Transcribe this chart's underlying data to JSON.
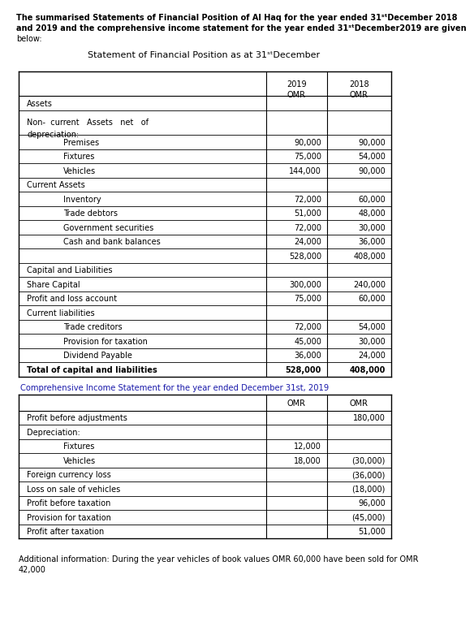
{
  "intro_line1": "The summarised Statements of Financial Position of Al Haq for the year ended 31ˢᵗDecember 2018",
  "intro_line2": "and 2019 and the comprehensive income statement for the year ended 31ˢᵗDecember2019 are given",
  "intro_line3": "below:",
  "sfp_title": "Statement of Financial Position as at 31ˢᵗDecember",
  "sfp_rows": [
    {
      "label": "Assets",
      "val2019": "",
      "val2018": "",
      "indent": 0,
      "bold": false,
      "multiline": false
    },
    {
      "label": "Non-  current   Assets   net   of\ndepreciation:",
      "val2019": "",
      "val2018": "",
      "indent": 0,
      "bold": false,
      "multiline": true
    },
    {
      "label": "Premises",
      "val2019": "90,000",
      "val2018": "90,000",
      "indent": 1,
      "bold": false,
      "multiline": false
    },
    {
      "label": "Fixtures",
      "val2019": "75,000",
      "val2018": "54,000",
      "indent": 1,
      "bold": false,
      "multiline": false
    },
    {
      "label": "Vehicles",
      "val2019": "144,000",
      "val2018": "90,000",
      "indent": 1,
      "bold": false,
      "multiline": false
    },
    {
      "label": "Current Assets",
      "val2019": "",
      "val2018": "",
      "indent": 0,
      "bold": false,
      "multiline": false
    },
    {
      "label": "Inventory",
      "val2019": "72,000",
      "val2018": "60,000",
      "indent": 1,
      "bold": false,
      "multiline": false
    },
    {
      "label": "Trade debtors",
      "val2019": "51,000",
      "val2018": "48,000",
      "indent": 1,
      "bold": false,
      "multiline": false
    },
    {
      "label": "Government securities",
      "val2019": "72,000",
      "val2018": "30,000",
      "indent": 1,
      "bold": false,
      "multiline": false
    },
    {
      "label": "Cash and bank balances",
      "val2019": "24,000",
      "val2018": "36,000",
      "indent": 1,
      "bold": false,
      "multiline": false
    },
    {
      "label": "",
      "val2019": "528,000",
      "val2018": "408,000",
      "indent": 0,
      "bold": false,
      "multiline": false
    },
    {
      "label": "Capital and Liabilities",
      "val2019": "",
      "val2018": "",
      "indent": 0,
      "bold": false,
      "multiline": false
    },
    {
      "label": "Share Capital",
      "val2019": "300,000",
      "val2018": "240,000",
      "indent": 0,
      "bold": false,
      "multiline": false
    },
    {
      "label": "Profit and loss account",
      "val2019": "75,000",
      "val2018": "60,000",
      "indent": 0,
      "bold": false,
      "multiline": false
    },
    {
      "label": "Current liabilities",
      "val2019": "",
      "val2018": "",
      "indent": 0,
      "bold": false,
      "multiline": false
    },
    {
      "label": "Trade creditors",
      "val2019": "72,000",
      "val2018": "54,000",
      "indent": 1,
      "bold": false,
      "multiline": false
    },
    {
      "label": "Provision for taxation",
      "val2019": "45,000",
      "val2018": "30,000",
      "indent": 1,
      "bold": false,
      "multiline": false
    },
    {
      "label": "Dividend Payable",
      "val2019": "36,000",
      "val2018": "24,000",
      "indent": 1,
      "bold": false,
      "multiline": false
    },
    {
      "label": "Total of capital and liabilities",
      "val2019": "528,000",
      "val2018": "408,000",
      "indent": 0,
      "bold": true,
      "multiline": false
    }
  ],
  "cis_title": "Comprehensive Income Statement for the year ended December 31st, 2019",
  "cis_title_color": "#1a1aaa",
  "cis_rows": [
    {
      "label": "Profit before adjustments",
      "col1": "",
      "col2": "180,000",
      "indent": 0
    },
    {
      "label": "Depreciation:",
      "col1": "",
      "col2": "",
      "indent": 0
    },
    {
      "label": "Fixtures",
      "col1": "12,000",
      "col2": "",
      "indent": 1
    },
    {
      "label": "Vehicles",
      "col1": "18,000",
      "col2": "(30,000)",
      "indent": 1
    },
    {
      "label": "Foreign currency loss",
      "col1": "",
      "col2": "(36,000)",
      "indent": 0
    },
    {
      "label": "Loss on sale of vehicles",
      "col1": "",
      "col2": "(18,000)",
      "indent": 0
    },
    {
      "label": "Profit before taxation",
      "col1": "",
      "col2": "96,000",
      "indent": 0
    },
    {
      "label": "Provision for taxation",
      "col1": "",
      "col2": "(45,000)",
      "indent": 0
    },
    {
      "label": "Profit after taxation",
      "col1": "",
      "col2": "51,000",
      "indent": 0
    }
  ],
  "add_info_line1": "Additional information: During the year vehicles of book values OMR 60,000 have been sold for OMR",
  "add_info_line2": "42,000",
  "bg_color": "#ffffff",
  "text_color": "#000000",
  "font_size": 7.0,
  "intro_font_size": 7.0,
  "title_font_size": 8.0,
  "cis_title_font_size": 7.2
}
